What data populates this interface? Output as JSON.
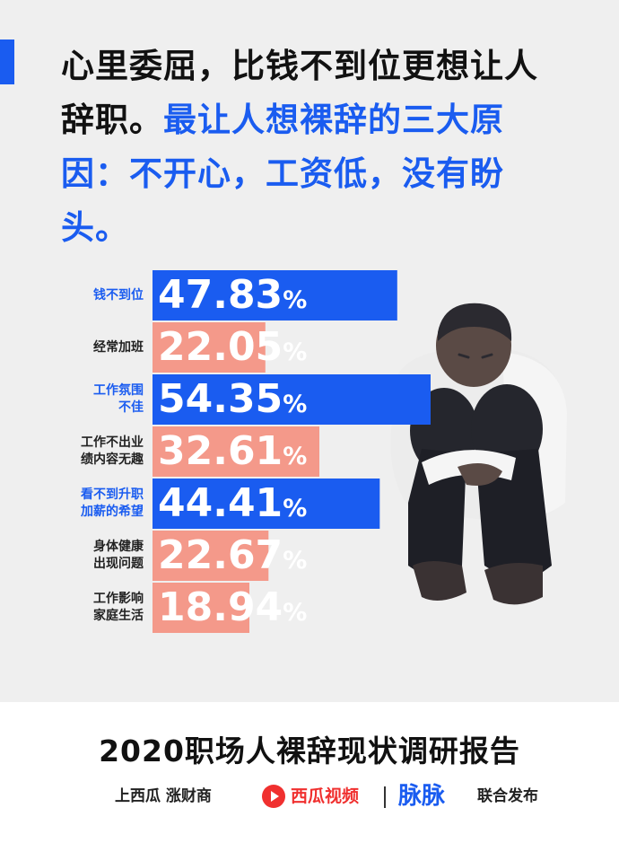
{
  "headline": {
    "line_black": "心里委屈，比钱不到位更想让人辞职。",
    "line_blue": "最让人想裸辞的三大原因：不开心，工资低，没有盼头。"
  },
  "chart_data": {
    "type": "bar",
    "orientation": "horizontal",
    "categories": [
      "钱不到位",
      "经常加班",
      "工作氛围不佳",
      "工作不出业绩内容无趣",
      "看不到升职加薪的希望",
      "身体健康出现问题",
      "工作影响家庭生活"
    ],
    "category_lines": [
      [
        "钱不到位"
      ],
      [
        "经常加班"
      ],
      [
        "工作氛围",
        "不佳"
      ],
      [
        "工作不出业",
        "绩内容无趣"
      ],
      [
        "看不到升职",
        "加薪的希望"
      ],
      [
        "身体健康",
        "出现问题"
      ],
      [
        "工作影响",
        "家庭生活"
      ]
    ],
    "values": [
      47.83,
      22.05,
      54.35,
      32.61,
      44.41,
      22.67,
      18.94
    ],
    "value_labels": [
      "47.83",
      "22.05",
      "54.35",
      "32.61",
      "44.41",
      "22.67",
      "18.94"
    ],
    "unit": "%",
    "bar_colors": [
      "#1a5cf0",
      "#f4998a",
      "#1a5cf0",
      "#f4998a",
      "#1a5cf0",
      "#f4998a",
      "#f4998a"
    ],
    "label_colors": [
      "blue",
      "dark",
      "blue",
      "dark",
      "blue",
      "dark",
      "dark"
    ]
  },
  "footer": {
    "title": "2020职场人裸辞现状调研报告",
    "logo_sgz": "上西瓜 涨财商",
    "logo_xigua": "西瓜视频",
    "logo_maimai": "脉脉",
    "publish": "联合发布"
  },
  "colors": {
    "accent_blue": "#1a5cf0",
    "salmon": "#f4998a",
    "background_top": "#efefef",
    "xigua_red": "#f0302f"
  }
}
